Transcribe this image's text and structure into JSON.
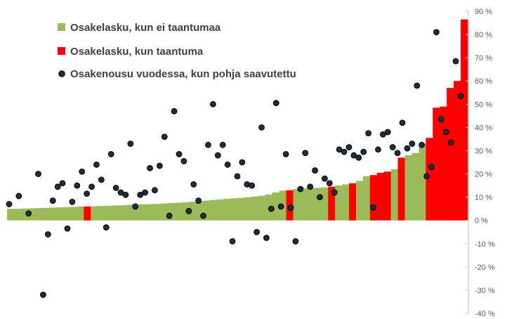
{
  "chart_data": {
    "type": "bar",
    "title": "",
    "xlabel": "",
    "ylabel": "",
    "ylim": [
      -40,
      90
    ],
    "y_ticks": [
      90,
      80,
      70,
      60,
      50,
      40,
      30,
      20,
      10,
      0,
      -10,
      -20,
      -30,
      -40
    ],
    "y_tick_labels": [
      "90 %",
      "80 %",
      "70 %",
      "60 %",
      "50 %",
      "40 %",
      "30 %",
      "20 %",
      "10 %",
      "0 %",
      "-10 %",
      "-20 %",
      "-30 %",
      "-40 %"
    ],
    "y_axis_position": "right",
    "grid": false,
    "legend_position": "top-left",
    "series": [
      {
        "name": "Osakelasku, kun ei taantumaa",
        "color": "#9BBB59",
        "kind": "bar"
      },
      {
        "name": "Osakelasku, kun taantuma",
        "color": "#FF0000",
        "kind": "bar"
      },
      {
        "name": "Osakenousu vuodessa, kun pohja saavutettu",
        "color": "#1F2D3D",
        "kind": "scatter"
      }
    ],
    "declines": [
      5.0,
      5.0,
      5.1,
      5.2,
      5.3,
      5.4,
      5.5,
      5.6,
      5.7,
      5.8,
      6.0,
      6.0,
      6.1,
      6.2,
      6.3,
      6.4,
      6.5,
      6.7,
      6.8,
      6.9,
      7.0,
      7.1,
      7.3,
      7.5,
      7.6,
      7.8,
      8.0,
      8.2,
      8.5,
      8.8,
      9.0,
      9.3,
      9.5,
      9.7,
      10.0,
      10.3,
      10.6,
      11.2,
      12.0,
      12.8,
      13.0,
      13.5,
      13.8,
      14.0,
      14.0,
      14.2,
      14.5,
      15.0,
      15.5,
      16.0,
      17.0,
      19.0,
      19.5,
      20.5,
      21.0,
      22.0,
      27.0,
      28.0,
      29.0,
      33.0,
      35.5,
      48.5,
      49.0,
      57.0,
      60.0,
      86.5
    ],
    "recession_flags": [
      0,
      0,
      0,
      0,
      0,
      0,
      0,
      0,
      0,
      0,
      0,
      1,
      0,
      0,
      0,
      0,
      0,
      0,
      0,
      0,
      0,
      0,
      0,
      0,
      0,
      0,
      0,
      0,
      0,
      0,
      0,
      0,
      0,
      0,
      0,
      0,
      0,
      0,
      0,
      0,
      1,
      0,
      0,
      0,
      0,
      0,
      1,
      0,
      0,
      1,
      0,
      0,
      1,
      1,
      1,
      0,
      1,
      0,
      0,
      0,
      1,
      1,
      1,
      1,
      1,
      1
    ],
    "rebounds": [
      {
        "x": 1,
        "y": 7.0
      },
      {
        "x": 2,
        "y": 10.5
      },
      {
        "x": 3,
        "y": 3.0
      },
      {
        "x": 4,
        "y": 20.0
      },
      {
        "x": 4.5,
        "y": -32.0
      },
      {
        "x": 5,
        "y": -6.0
      },
      {
        "x": 5.5,
        "y": 8.5
      },
      {
        "x": 6,
        "y": 14.5
      },
      {
        "x": 6.5,
        "y": 16.0
      },
      {
        "x": 7,
        "y": -3.5
      },
      {
        "x": 7.5,
        "y": 8.0
      },
      {
        "x": 8,
        "y": 15.0
      },
      {
        "x": 8.5,
        "y": 21.0
      },
      {
        "x": 9,
        "y": 11.5
      },
      {
        "x": 9.5,
        "y": 14.5
      },
      {
        "x": 10,
        "y": 24.0
      },
      {
        "x": 10.5,
        "y": 17.5
      },
      {
        "x": 11,
        "y": -3.0
      },
      {
        "x": 11.5,
        "y": 28.5
      },
      {
        "x": 12,
        "y": 14.0
      },
      {
        "x": 12.5,
        "y": 12.0
      },
      {
        "x": 13,
        "y": 11.0
      },
      {
        "x": 13.5,
        "y": 33.0
      },
      {
        "x": 14,
        "y": 6.0
      },
      {
        "x": 14.5,
        "y": 11.0
      },
      {
        "x": 15,
        "y": 12.0
      },
      {
        "x": 15.5,
        "y": 22.5
      },
      {
        "x": 16,
        "y": 13.0
      },
      {
        "x": 16.5,
        "y": 23.5
      },
      {
        "x": 17,
        "y": 36.0
      },
      {
        "x": 17.5,
        "y": 2.0
      },
      {
        "x": 18,
        "y": 47.0
      },
      {
        "x": 18.5,
        "y": 28.5
      },
      {
        "x": 19,
        "y": 25.5
      },
      {
        "x": 19.5,
        "y": 4.0
      },
      {
        "x": 20,
        "y": 15.5
      },
      {
        "x": 20.5,
        "y": 8.5
      },
      {
        "x": 21,
        "y": 2.0
      },
      {
        "x": 21.5,
        "y": 32.5
      },
      {
        "x": 22,
        "y": 50.0
      },
      {
        "x": 22.5,
        "y": 28.0
      },
      {
        "x": 23,
        "y": 32.5
      },
      {
        "x": 23.5,
        "y": 24.0
      },
      {
        "x": 24,
        "y": -9.0
      },
      {
        "x": 24.5,
        "y": 19.0
      },
      {
        "x": 25,
        "y": 25.0
      },
      {
        "x": 25.5,
        "y": 15.5
      },
      {
        "x": 26,
        "y": 15.0
      },
      {
        "x": 26.5,
        "y": -5.0
      },
      {
        "x": 27,
        "y": 40.0
      },
      {
        "x": 27.5,
        "y": -7.5
      },
      {
        "x": 28,
        "y": 5.0
      },
      {
        "x": 28.5,
        "y": 50.5
      },
      {
        "x": 29,
        "y": 6.0
      },
      {
        "x": 29.5,
        "y": 28.5
      },
      {
        "x": 30,
        "y": 5.5
      },
      {
        "x": 30.5,
        "y": -9.0
      },
      {
        "x": 31,
        "y": 13.5
      },
      {
        "x": 31.5,
        "y": 29.0
      },
      {
        "x": 32,
        "y": 14.5
      },
      {
        "x": 32.5,
        "y": 21.5
      },
      {
        "x": 33,
        "y": 10.0
      },
      {
        "x": 33.5,
        "y": 18.0
      },
      {
        "x": 34,
        "y": 16.0
      },
      {
        "x": 34.5,
        "y": 12.0
      },
      {
        "x": 35,
        "y": 30.5
      },
      {
        "x": 35.5,
        "y": 29.5
      },
      {
        "x": 36,
        "y": 31.5
      },
      {
        "x": 36.5,
        "y": 28.0
      },
      {
        "x": 37,
        "y": 27.0
      },
      {
        "x": 37.5,
        "y": 29.5
      },
      {
        "x": 38,
        "y": 37.5
      },
      {
        "x": 38.5,
        "y": 5.5
      },
      {
        "x": 39,
        "y": 30.5
      },
      {
        "x": 39.5,
        "y": 37.0
      },
      {
        "x": 40,
        "y": 38.0
      },
      {
        "x": 40.5,
        "y": 31.5
      },
      {
        "x": 41,
        "y": 29.0
      },
      {
        "x": 41.5,
        "y": 42.0
      },
      {
        "x": 42,
        "y": 31.0
      },
      {
        "x": 42.5,
        "y": 33.0
      },
      {
        "x": 43,
        "y": 58.0
      },
      {
        "x": 43.5,
        "y": 32.5
      },
      {
        "x": 44,
        "y": 19.0
      },
      {
        "x": 44.5,
        "y": 23.0
      },
      {
        "x": 45,
        "y": 81.0
      },
      {
        "x": 45.5,
        "y": 43.5
      },
      {
        "x": 46,
        "y": 38.0
      },
      {
        "x": 46.5,
        "y": 33.5
      },
      {
        "x": 47,
        "y": 68.5
      },
      {
        "x": 47.5,
        "y": 53.5
      }
    ]
  }
}
